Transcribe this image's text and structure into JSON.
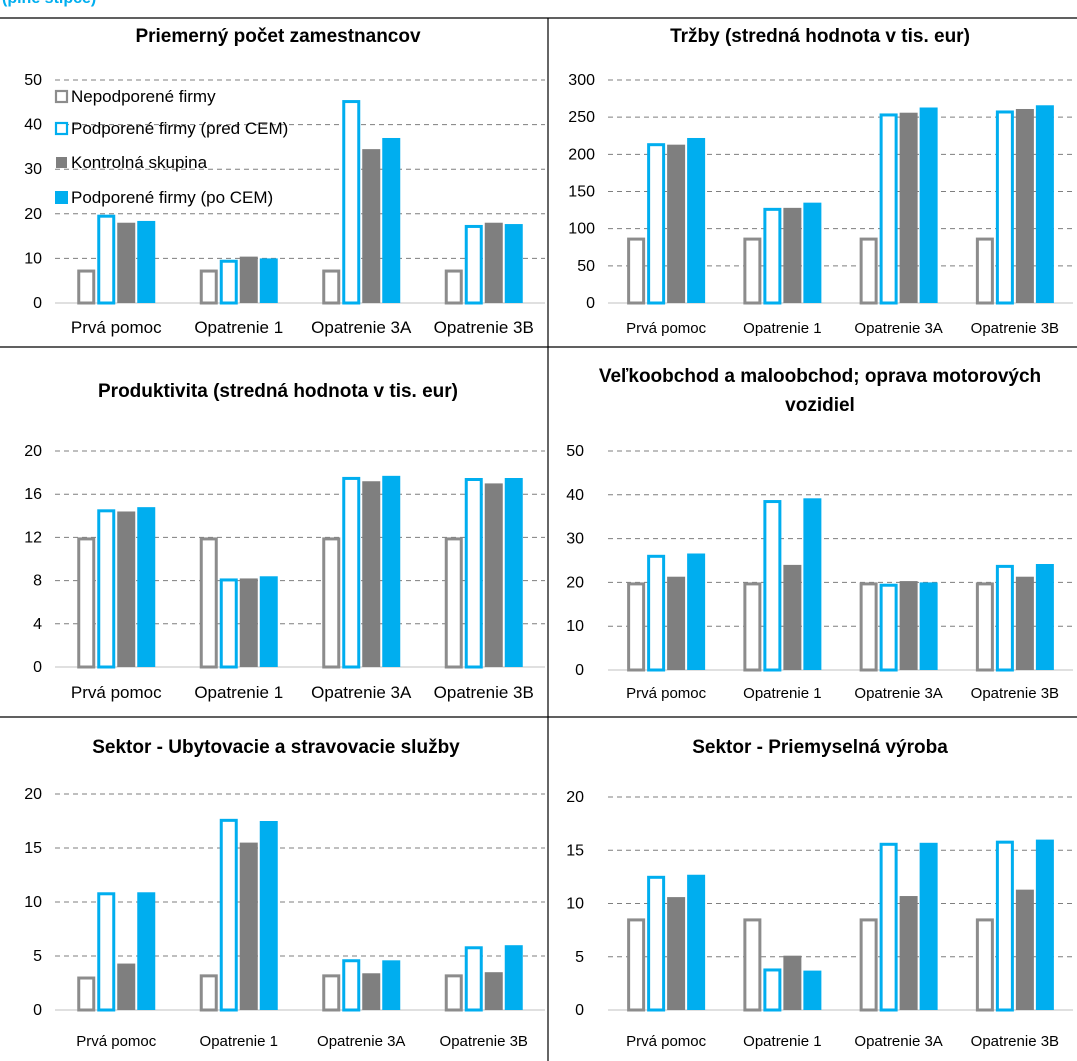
{
  "header": {
    "cut_text": "(plné stĺpce)"
  },
  "legend": {
    "series": [
      "Nepodporené firmy",
      "Podporené firmy (pred CEM)",
      "Kontrolná skupina",
      "Podporené firmy (po CEM)"
    ]
  },
  "colors": {
    "unsupported_outline": "#8c8c8c",
    "supported_before_outline": "#00aeef",
    "control_fill": "#7f7f7f",
    "supported_after_fill": "#00aeef",
    "grid": "#7f7f7f",
    "axis": "#c0c0c0"
  },
  "chart_data": [
    {
      "type": "bar",
      "title": [
        "Priemerný počet zamestnancov"
      ],
      "categories": [
        "Prvá pomoc",
        "Opatrenie 1",
        "Opatrenie 3A",
        "Opatrenie 3B"
      ],
      "ylim": [
        0,
        50
      ],
      "yticks": [
        0,
        10,
        20,
        30,
        40,
        50
      ],
      "grid": true,
      "legend": "top-left",
      "series": [
        {
          "name": "Nepodporené firmy",
          "values": [
            7.5,
            7.5,
            7.5,
            7.5
          ]
        },
        {
          "name": "Podporené firmy (pred CEM)",
          "values": [
            19.8,
            9.7,
            45.5,
            17.5
          ]
        },
        {
          "name": "Kontrolná skupina",
          "values": [
            18.0,
            10.4,
            34.5,
            18.0
          ]
        },
        {
          "name": "Podporené firmy (po CEM)",
          "values": [
            18.4,
            10.0,
            37.0,
            17.7
          ]
        }
      ]
    },
    {
      "type": "bar",
      "title": [
        "Tržby (stredná hodnota v tis. eur)"
      ],
      "categories": [
        "Prvá pomoc",
        "Opatrenie 1",
        "Opatrenie 3A",
        "Opatrenie 3B"
      ],
      "ylim": [
        0,
        300
      ],
      "yticks": [
        0,
        50,
        100,
        150,
        200,
        250,
        300
      ],
      "grid": true,
      "series": [
        {
          "name": "Nepodporené firmy",
          "values": [
            88,
            88,
            88,
            88
          ]
        },
        {
          "name": "Podporené firmy (pred CEM)",
          "values": [
            215,
            128,
            255,
            259
          ]
        },
        {
          "name": "Kontrolná skupina",
          "values": [
            213,
            128,
            256,
            261
          ]
        },
        {
          "name": "Podporené firmy (po CEM)",
          "values": [
            222,
            135,
            263,
            266
          ]
        }
      ]
    },
    {
      "type": "bar",
      "title": [
        "Produktivita (stredná hodnota v tis. eur)"
      ],
      "categories": [
        "Prvá pomoc",
        "Opatrenie 1",
        "Opatrenie 3A",
        "Opatrenie 3B"
      ],
      "ylim": [
        0,
        20
      ],
      "yticks": [
        0,
        4,
        8,
        12,
        16,
        20
      ],
      "grid": true,
      "series": [
        {
          "name": "Nepodporené firmy",
          "values": [
            12.0,
            12.0,
            12.0,
            12.0
          ]
        },
        {
          "name": "Podporené firmy (pred CEM)",
          "values": [
            14.6,
            8.2,
            17.6,
            17.5
          ]
        },
        {
          "name": "Kontrolná skupina",
          "values": [
            14.4,
            8.2,
            17.2,
            17.0
          ]
        },
        {
          "name": "Podporené firmy (po CEM)",
          "values": [
            14.8,
            8.4,
            17.7,
            17.5
          ]
        }
      ]
    },
    {
      "type": "bar",
      "title": [
        "Veľkoobchod a maloobchod; oprava motorových",
        "vozidiel"
      ],
      "categories": [
        "Prvá pomoc",
        "Opatrenie 1",
        "Opatrenie 3A",
        "Opatrenie 3B"
      ],
      "ylim": [
        0,
        50
      ],
      "yticks": [
        0,
        10,
        20,
        30,
        40,
        50
      ],
      "grid": true,
      "series": [
        {
          "name": "Nepodporené firmy",
          "values": [
            20.0,
            20.0,
            20.0,
            20.0
          ]
        },
        {
          "name": "Podporené firmy (pred CEM)",
          "values": [
            26.3,
            38.8,
            19.7,
            24.0
          ]
        },
        {
          "name": "Kontrolná skupina",
          "values": [
            21.3,
            24.0,
            20.3,
            21.3
          ]
        },
        {
          "name": "Podporené firmy (po CEM)",
          "values": [
            26.6,
            39.2,
            20.0,
            24.2
          ]
        }
      ]
    },
    {
      "type": "bar",
      "title": [
        "Sektor - Ubytovacie a stravovacie služby"
      ],
      "categories": [
        "Prvá pomoc",
        "Opatrenie 1",
        "Opatrenie 3A",
        "Opatrenie 3B"
      ],
      "ylim": [
        0,
        20
      ],
      "yticks": [
        0,
        5,
        10,
        15,
        20
      ],
      "grid": true,
      "series": [
        {
          "name": "Nepodporené firmy",
          "values": [
            3.1,
            3.3,
            3.3,
            3.3
          ]
        },
        {
          "name": "Podporené firmy (pred CEM)",
          "values": [
            10.9,
            17.7,
            4.7,
            5.9
          ]
        },
        {
          "name": "Kontrolná skupina",
          "values": [
            4.3,
            15.5,
            3.4,
            3.5
          ]
        },
        {
          "name": "Podporené firmy (po CEM)",
          "values": [
            10.9,
            17.5,
            4.6,
            6.0
          ]
        }
      ]
    },
    {
      "type": "bar",
      "title": [
        "Sektor - Priemyselná výroba"
      ],
      "categories": [
        "Prvá pomoc",
        "Opatrenie 1",
        "Opatrenie 3A",
        "Opatrenie 3B"
      ],
      "ylim": [
        0,
        20
      ],
      "yticks": [
        0,
        5,
        10,
        15,
        20
      ],
      "grid": true,
      "series": [
        {
          "name": "Nepodporené firmy",
          "values": [
            8.6,
            8.6,
            8.6,
            8.6
          ]
        },
        {
          "name": "Podporené firmy (pred CEM)",
          "values": [
            12.6,
            3.9,
            15.7,
            15.9
          ]
        },
        {
          "name": "Kontrolná skupina",
          "values": [
            10.6,
            5.1,
            10.7,
            11.3
          ]
        },
        {
          "name": "Podporené firmy (po CEM)",
          "values": [
            12.7,
            3.7,
            15.7,
            16.0
          ]
        }
      ]
    }
  ]
}
